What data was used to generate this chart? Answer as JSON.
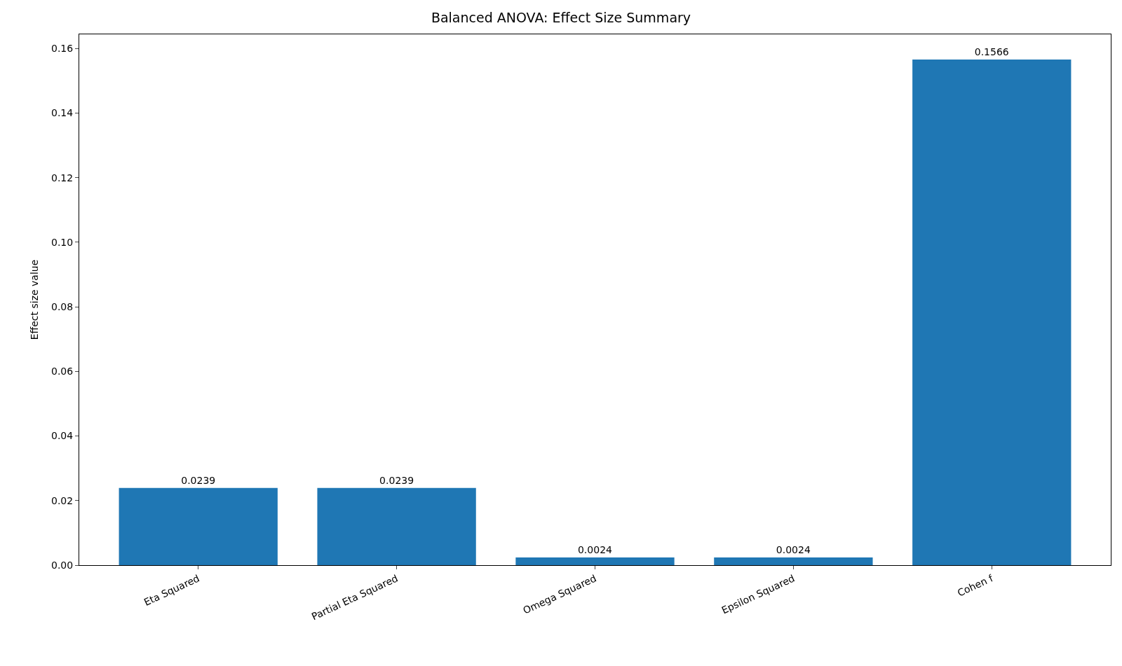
{
  "chart_data": {
    "type": "bar",
    "title": "Balanced ANOVA: Effect Size Summary",
    "ylabel": "Effect size value",
    "categories": [
      "Eta Squared",
      "Partial Eta Squared",
      "Omega Squared",
      "Epsilon Squared",
      "Cohen f"
    ],
    "values": [
      0.0239,
      0.0239,
      0.0024,
      0.0024,
      0.1566
    ],
    "color": "#1f77b4",
    "ylim": [
      0,
      0.1644
    ],
    "yticks": [
      {
        "value": 0,
        "label": "0.00"
      },
      {
        "value": 0.02,
        "label": "0.02"
      },
      {
        "value": 0.04,
        "label": "0.04"
      },
      {
        "value": 0.06,
        "label": "0.06"
      },
      {
        "value": 0.08,
        "label": "0.08"
      },
      {
        "value": 0.1,
        "label": "0.10"
      },
      {
        "value": 0.12,
        "label": "0.12"
      },
      {
        "value": 0.14,
        "label": "0.14"
      },
      {
        "value": 0.16,
        "label": "0.16"
      }
    ],
    "data_labels": true,
    "legend": false
  }
}
